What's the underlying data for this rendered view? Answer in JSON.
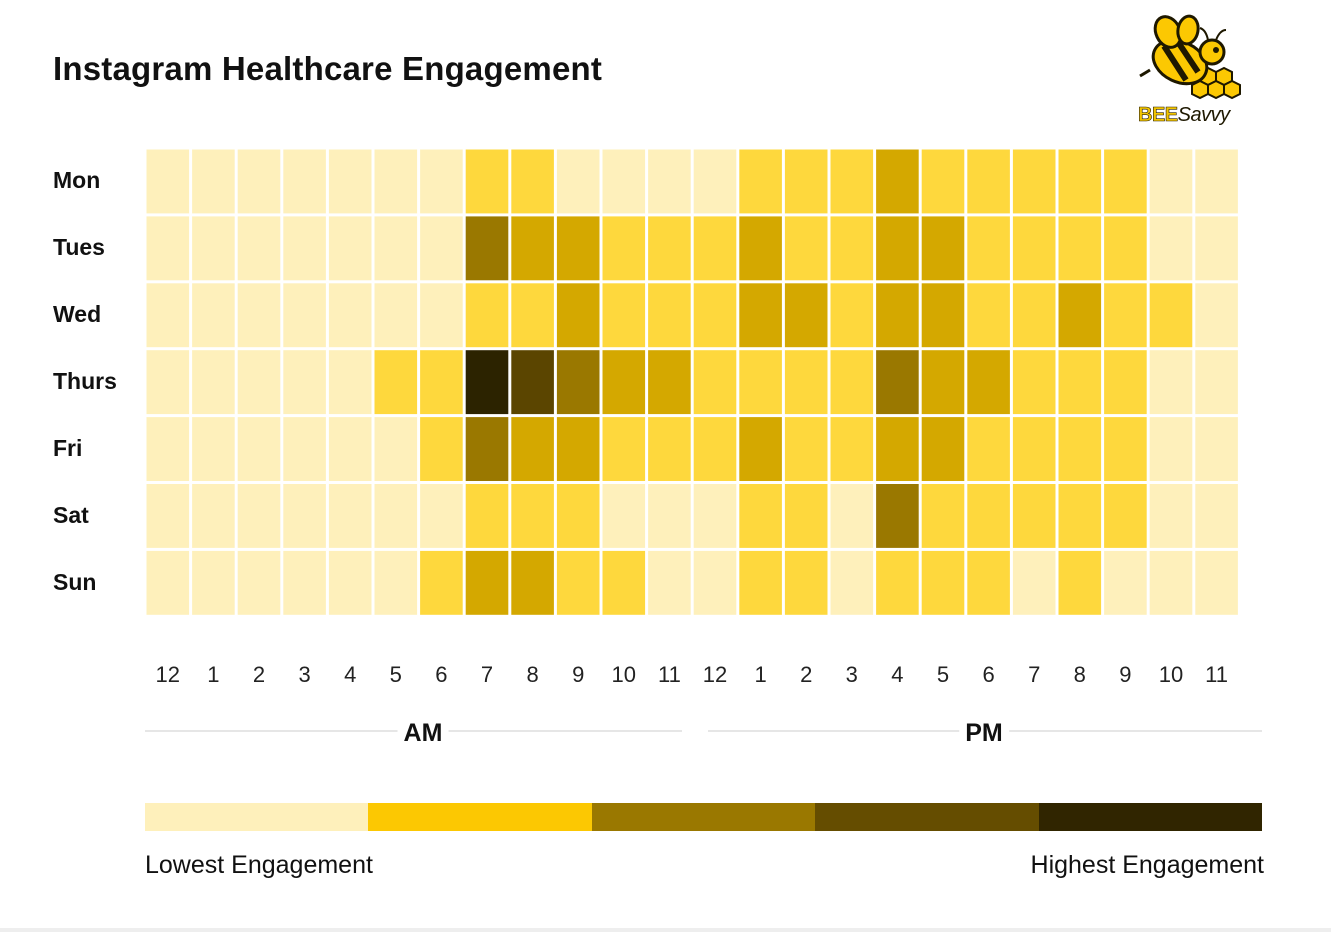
{
  "title": "Instagram Healthcare Engagement",
  "logo": {
    "brand_bold": "BEE",
    "brand_light": "Savvy"
  },
  "colors": {
    "level0": "#fef0bb",
    "level1": "#fed83d",
    "level2": "#d4a800",
    "level3": "#9a7800",
    "level4": "#5b4500",
    "level5": "#2c2300",
    "grid": "#ffffff"
  },
  "chart_data": {
    "type": "heatmap",
    "title": "Instagram Healthcare Engagement",
    "rows": [
      "Mon",
      "Tues",
      "Wed",
      "Thurs",
      "Fri",
      "Sat",
      "Sun"
    ],
    "columns": [
      "12",
      "1",
      "2",
      "3",
      "4",
      "5",
      "6",
      "7",
      "8",
      "9",
      "10",
      "11",
      "12",
      "1",
      "2",
      "3",
      "4",
      "5",
      "6",
      "7",
      "8",
      "9",
      "10",
      "11"
    ],
    "periods": [
      {
        "label": "AM",
        "columns": [
          0,
          11
        ]
      },
      {
        "label": "PM",
        "columns": [
          12,
          23
        ]
      }
    ],
    "values": [
      [
        0,
        0,
        0,
        0,
        0,
        0,
        0,
        1,
        1,
        0,
        0,
        0,
        0,
        1,
        1,
        1,
        2,
        1,
        1,
        1,
        1,
        1,
        0,
        0
      ],
      [
        0,
        0,
        0,
        0,
        0,
        0,
        0,
        3,
        2,
        2,
        1,
        1,
        1,
        2,
        1,
        1,
        2,
        2,
        1,
        1,
        1,
        1,
        0,
        0
      ],
      [
        0,
        0,
        0,
        0,
        0,
        0,
        0,
        1,
        1,
        2,
        1,
        1,
        1,
        2,
        2,
        1,
        2,
        2,
        1,
        1,
        2,
        1,
        1,
        0
      ],
      [
        0,
        0,
        0,
        0,
        0,
        1,
        1,
        5,
        4,
        3,
        2,
        2,
        1,
        1,
        1,
        1,
        3,
        2,
        2,
        1,
        1,
        1,
        0,
        0
      ],
      [
        0,
        0,
        0,
        0,
        0,
        0,
        1,
        3,
        2,
        2,
        1,
        1,
        1,
        2,
        1,
        1,
        2,
        2,
        1,
        1,
        1,
        1,
        0,
        0
      ],
      [
        0,
        0,
        0,
        0,
        0,
        0,
        0,
        1,
        1,
        1,
        0,
        0,
        0,
        1,
        1,
        0,
        3,
        1,
        1,
        1,
        1,
        1,
        0,
        0
      ],
      [
        0,
        0,
        0,
        0,
        0,
        0,
        1,
        2,
        2,
        1,
        1,
        0,
        0,
        1,
        1,
        0,
        1,
        1,
        1,
        0,
        1,
        0,
        0,
        0
      ]
    ],
    "scale_min": 0,
    "scale_max": 5,
    "legend": {
      "low_label": "Lowest Engagement",
      "high_label": "Highest Engagement",
      "colors": [
        "#fef0bb",
        "#fcc802",
        "#9a7800",
        "#654d00",
        "#302500"
      ]
    }
  }
}
